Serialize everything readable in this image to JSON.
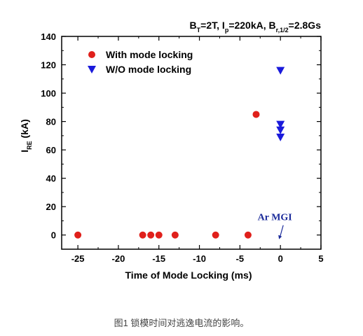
{
  "chart_data": {
    "type": "scatter",
    "title": "",
    "header_note": {
      "parts": [
        {
          "t": "B",
          "sub": false
        },
        {
          "t": "T",
          "sub": true
        },
        {
          "t": "=2T, I",
          "sub": false
        },
        {
          "t": "p",
          "sub": true
        },
        {
          "t": "=220kA, B",
          "sub": false
        },
        {
          "t": "r,1/2",
          "sub": true
        },
        {
          "t": "=2.8Gs",
          "sub": false
        }
      ]
    },
    "xlabel": "Time of Mode Locking (ms)",
    "ylabel": {
      "main": "I",
      "sub": "RE",
      "rest": " (kA)"
    },
    "xlim": [
      -27,
      5
    ],
    "ylim": [
      -10,
      140
    ],
    "xticks": [
      -25,
      -20,
      -15,
      -10,
      -5,
      0,
      5
    ],
    "yticks": [
      0,
      20,
      40,
      60,
      80,
      100,
      120,
      140
    ],
    "grid": false,
    "legend_position": "top-left",
    "series": [
      {
        "name": "With mode locking",
        "marker": "circle",
        "color": "#e0201b",
        "points": [
          [
            -25,
            0
          ],
          [
            -17,
            0
          ],
          [
            -16,
            0
          ],
          [
            -15,
            0
          ],
          [
            -13,
            0
          ],
          [
            -8,
            0
          ],
          [
            -4,
            0
          ],
          [
            -3,
            85
          ]
        ]
      },
      {
        "name": "W/O mode locking",
        "marker": "triangle-down",
        "color": "#1a1adb",
        "points": [
          [
            0,
            116
          ],
          [
            0,
            78
          ],
          [
            0,
            74
          ],
          [
            0,
            69
          ]
        ]
      }
    ],
    "annotation": {
      "text": "Ar MGI",
      "x": 0,
      "y": 0,
      "color": "#1a2a9a"
    }
  },
  "caption": "图1 锁模时间对逃逸电流的影响。"
}
